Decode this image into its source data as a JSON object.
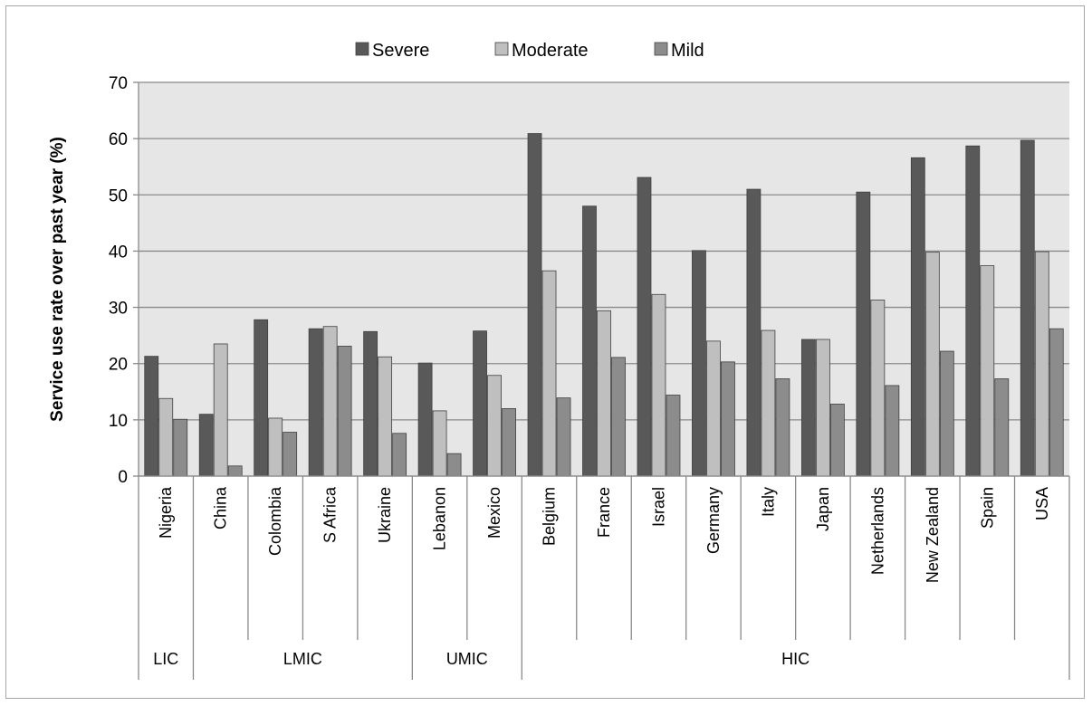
{
  "chart_data": {
    "type": "bar",
    "title": "",
    "ylabel": "Service use rate over past year (%)",
    "xlabel": "",
    "ylim": [
      0,
      70
    ],
    "yticks": [
      "0",
      "10",
      "20",
      "30",
      "40",
      "50",
      "60",
      "70"
    ],
    "grid": true,
    "legend_position": "top",
    "categories": [
      "Nigeria",
      "China",
      "Colombia",
      "S Africa",
      "Ukraine",
      "Lebanon",
      "Mexico",
      "Belgium",
      "France",
      "Israel",
      "Germany",
      "Italy",
      "Japan",
      "Netherlands",
      "New Zealand",
      "Spain",
      "USA"
    ],
    "groups": [
      {
        "label": "LIC",
        "count": 1
      },
      {
        "label": "LMIC",
        "count": 4
      },
      {
        "label": "UMIC",
        "count": 2
      },
      {
        "label": "HIC",
        "count": 10
      }
    ],
    "series": [
      {
        "name": "Severe",
        "color": "#595959",
        "values": [
          21.3,
          11.0,
          27.8,
          26.2,
          25.7,
          20.1,
          25.8,
          60.9,
          48.0,
          53.1,
          40.1,
          51.0,
          24.3,
          50.5,
          56.6,
          58.7,
          59.7
        ]
      },
      {
        "name": "Moderate",
        "color": "#bfbfbf",
        "values": [
          13.8,
          23.5,
          10.3,
          26.6,
          21.2,
          11.6,
          17.9,
          36.5,
          29.4,
          32.3,
          24.0,
          25.9,
          24.3,
          31.3,
          39.8,
          37.4,
          39.9
        ]
      },
      {
        "name": "Mild",
        "color": "#8c8c8c",
        "values": [
          10.1,
          1.8,
          7.8,
          23.1,
          7.6,
          4.0,
          12.0,
          13.9,
          21.1,
          14.4,
          20.3,
          17.3,
          12.8,
          16.1,
          22.2,
          17.3,
          26.2
        ]
      }
    ]
  }
}
